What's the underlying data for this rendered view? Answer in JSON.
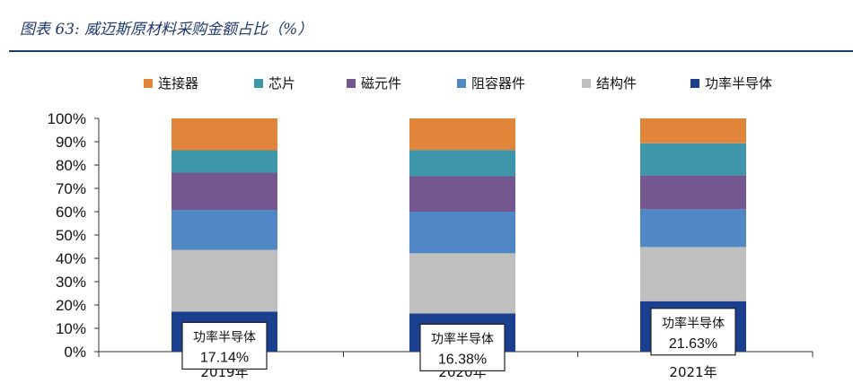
{
  "figure": {
    "title": "图表 63:  威迈斯原材料采购金额占比（%）"
  },
  "chart_data": {
    "type": "bar",
    "stacked": true,
    "categories": [
      "2019年",
      "2020年",
      "2021年"
    ],
    "ylim": [
      0,
      100
    ],
    "yticks": [
      "0%",
      "10%",
      "20%",
      "30%",
      "40%",
      "50%",
      "60%",
      "70%",
      "80%",
      "90%",
      "100%"
    ],
    "legend_position": "top",
    "series": [
      {
        "name": "功率半导体",
        "color": "#1a3f8f",
        "values": [
          17.14,
          16.38,
          21.63
        ]
      },
      {
        "name": "结构件",
        "color": "#bfbfbf",
        "values": [
          26.5,
          25.8,
          23.2
        ]
      },
      {
        "name": "阻容器件",
        "color": "#4f87c7",
        "values": [
          17.1,
          17.8,
          16.2
        ]
      },
      {
        "name": "磁元件",
        "color": "#75578f",
        "values": [
          16.0,
          15.2,
          14.5
        ]
      },
      {
        "name": "芯片",
        "color": "#3e96ab",
        "values": [
          9.6,
          11.3,
          13.8
        ]
      },
      {
        "name": "连接器",
        "color": "#e0853a",
        "values": [
          13.66,
          13.52,
          10.67
        ]
      }
    ],
    "legend_order": [
      "连接器",
      "芯片",
      "磁元件",
      "阻容器件",
      "结构件",
      "功率半导体"
    ],
    "annotations": [
      {
        "label": "功率半导体",
        "value": "17.14%"
      },
      {
        "label": "功率半导体",
        "value": "16.38%"
      },
      {
        "label": "功率半导体",
        "value": "21.63%"
      }
    ]
  }
}
